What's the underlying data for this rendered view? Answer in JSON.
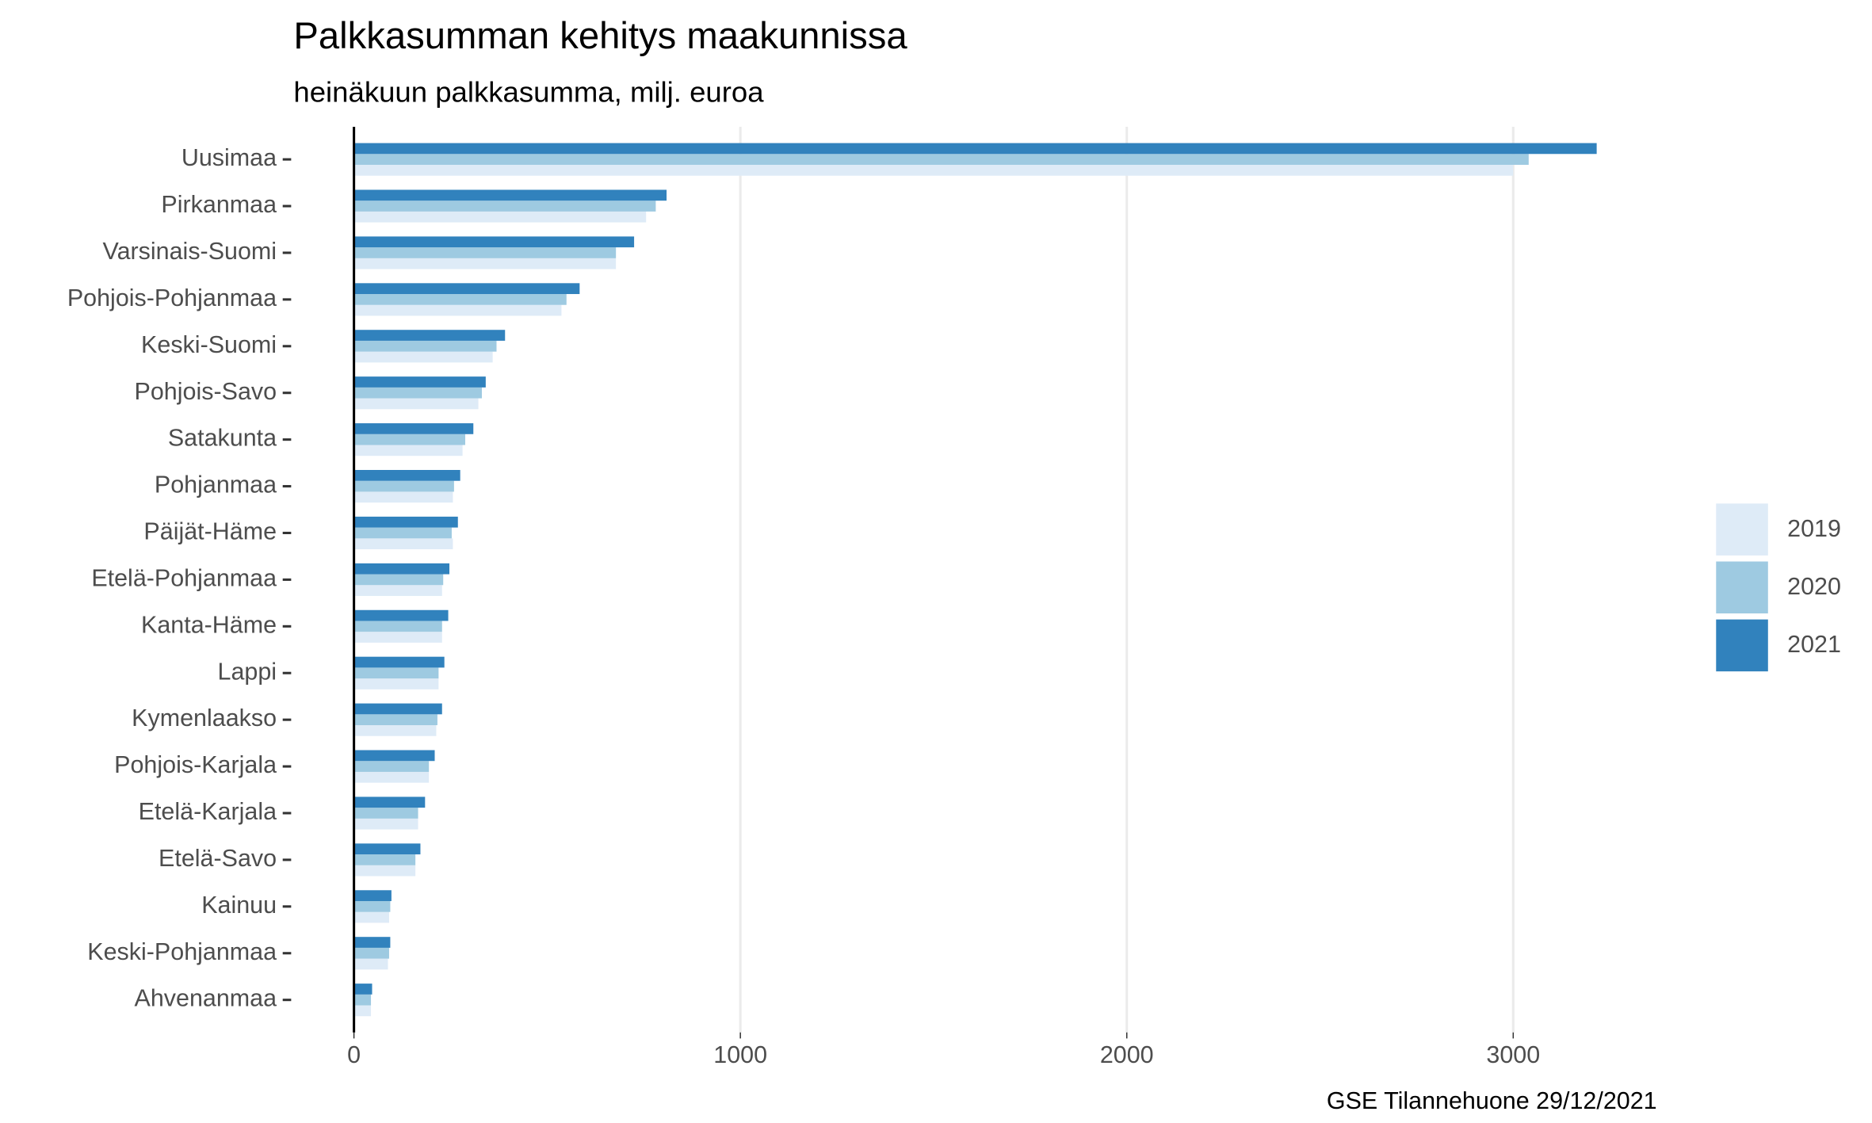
{
  "chart_data": {
    "type": "bar",
    "orientation": "horizontal",
    "title": "Palkkasumman kehitys maakunnissa",
    "subtitle": "heinäkuun palkkasumma, milj. euroa",
    "caption": "GSE Tilannehuone 29/12/2021",
    "categories": [
      "Uusimaa",
      "Pirkanmaa",
      "Varsinais-Suomi",
      "Pohjois-Pohjanmaa",
      "Keski-Suomi",
      "Pohjois-Savo",
      "Satakunta",
      "Pohjanmaa",
      "Päijät-Häme",
      "Etelä-Pohjanmaa",
      "Kanta-Häme",
      "Lappi",
      "Kymenlaakso",
      "Pohjois-Karjala",
      "Etelä-Karjala",
      "Etelä-Savo",
      "Kainuu",
      "Keski-Pohjanmaa",
      "Ahvenanmaa"
    ],
    "series": [
      {
        "name": "2019",
        "color": "#deebf7",
        "values": [
          3000,
          756,
          678,
          537,
          359,
          322,
          281,
          256,
          256,
          228,
          228,
          219,
          213,
          194,
          166,
          159,
          91,
          88,
          44
        ]
      },
      {
        "name": "2020",
        "color": "#9ecae1",
        "values": [
          3040,
          781,
          678,
          550,
          369,
          331,
          288,
          259,
          253,
          231,
          228,
          219,
          216,
          194,
          166,
          159,
          94,
          91,
          44
        ]
      },
      {
        "name": "2021",
        "color": "#3182bd",
        "values": [
          3216,
          809,
          725,
          584,
          391,
          341,
          309,
          275,
          269,
          247,
          244,
          234,
          228,
          209,
          184,
          172,
          97,
          94,
          47
        ]
      }
    ],
    "xlim": [
      0,
      3400
    ],
    "xticks": [
      0,
      1000,
      2000,
      3000
    ],
    "grid": true,
    "legend": "right"
  }
}
